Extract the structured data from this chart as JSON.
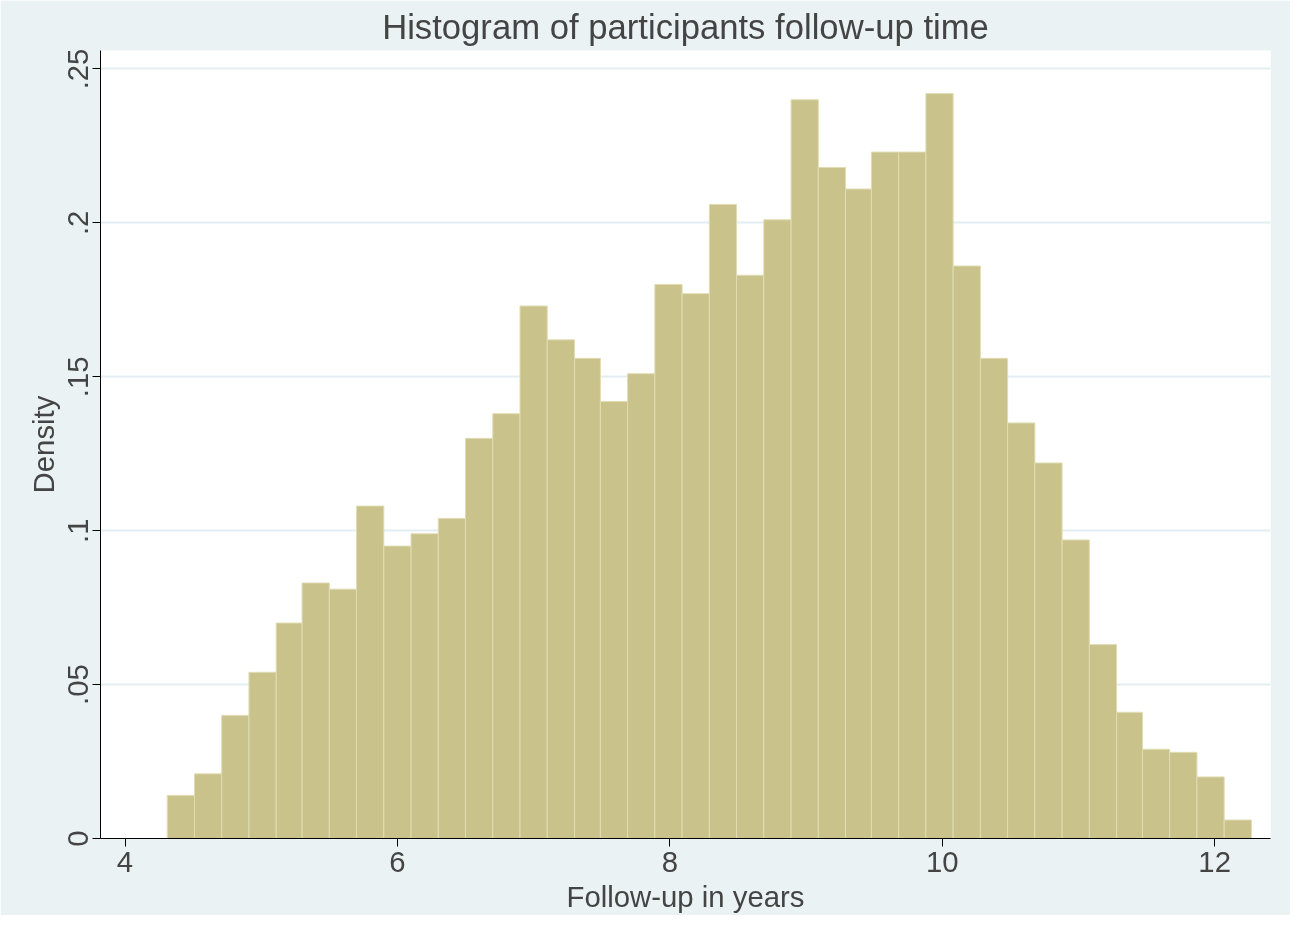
{
  "chart_data": {
    "type": "histogram",
    "title": "Histogram of participants follow-up time",
    "xlabel": "Follow-up in years",
    "ylabel": "Density",
    "bins": [
      4.31,
      4.51,
      4.71,
      4.91,
      5.11,
      5.3,
      5.5,
      5.7,
      5.9,
      6.1,
      6.3,
      6.5,
      6.7,
      6.9,
      7.1,
      7.3,
      7.49,
      7.69,
      7.89,
      8.09,
      8.29,
      8.49,
      8.69,
      8.89,
      9.09,
      9.29,
      9.48,
      9.68,
      9.88,
      10.08,
      10.28,
      10.48,
      10.68,
      10.88,
      11.08,
      11.28,
      11.47,
      11.67,
      11.87,
      12.07,
      12.27
    ],
    "values": [
      0.014,
      0.021,
      0.04,
      0.054,
      0.07,
      0.083,
      0.081,
      0.108,
      0.095,
      0.099,
      0.104,
      0.13,
      0.138,
      0.173,
      0.162,
      0.156,
      0.142,
      0.151,
      0.18,
      0.177,
      0.206,
      0.183,
      0.201,
      0.24,
      0.218,
      0.211,
      0.223,
      0.223,
      0.242,
      0.186,
      0.156,
      0.135,
      0.122,
      0.097,
      0.063,
      0.041,
      0.029,
      0.028,
      0.02,
      0.006
    ],
    "color": "#c9c28a",
    "xlim": [
      3.82,
      12.41
    ],
    "xticks": [
      4,
      6,
      8,
      10,
      12
    ],
    "ylim": [
      0,
      0.256
    ],
    "yticks": [
      {
        "value": 0,
        "label": "0"
      },
      {
        "value": 0.05,
        "label": ".05"
      },
      {
        "value": 0.1,
        "label": ".1"
      },
      {
        "value": 0.15,
        "label": ".15"
      },
      {
        "value": 0.2,
        "label": ".2"
      },
      {
        "value": 0.25,
        "label": ".25"
      }
    ],
    "grid": "y"
  }
}
